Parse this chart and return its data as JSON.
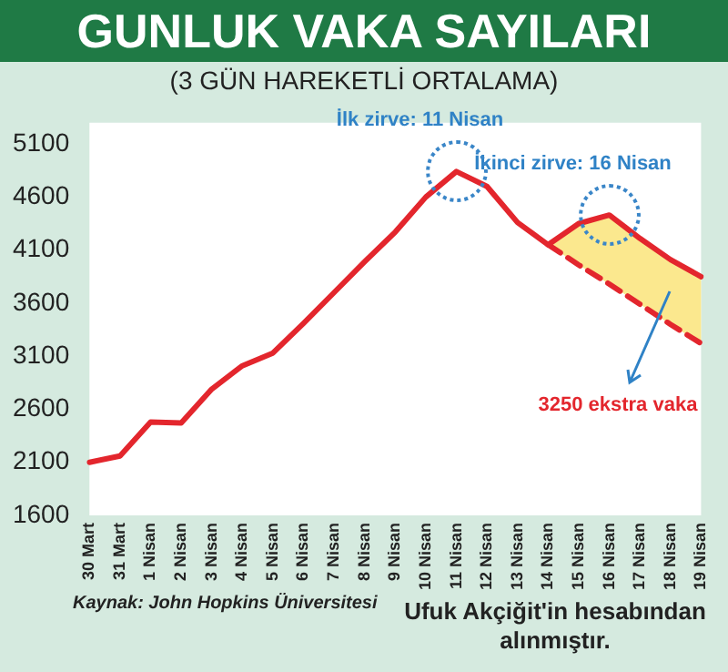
{
  "chart_data": {
    "type": "line",
    "title": "GUNLUK VAKA SAYILARI",
    "subtitle": "(3 GÜN HAREKETLİ ORTALAMA)",
    "categories": [
      "30 Mart",
      "31 Mart",
      "1 Nisan",
      "2 Nisan",
      "3 Nisan",
      "4 Nisan",
      "5 Nisan",
      "6 Nisan",
      "7 Nisan",
      "8 Nisan",
      "9 Nisan",
      "10 Nisan",
      "11 Nisan",
      "12 Nisan",
      "13 Nisan",
      "14 Nisan",
      "15 Nisan",
      "16 Nisan",
      "17 Nisan",
      "18 Nisan",
      "19 Nisan"
    ],
    "series": [
      {
        "color": "#e3262d",
        "line_style": "solid",
        "values": [
          2100,
          2160,
          2480,
          2470,
          2790,
          3010,
          3130,
          3410,
          3700,
          3990,
          4270,
          4600,
          4840,
          4700,
          4360,
          4150,
          4350,
          4430,
          4210,
          4010,
          3850
        ],
        "lower": [
          null,
          null,
          null,
          null,
          null,
          null,
          null,
          null,
          null,
          null,
          null,
          null,
          null,
          null,
          null,
          4150,
          3960,
          3780,
          3590,
          3400,
          3220
        ],
        "upper": [
          null,
          null,
          null,
          null,
          null,
          null,
          null,
          null,
          null,
          null,
          null,
          null,
          null,
          null,
          null,
          4150,
          4350,
          4430,
          4210,
          4010,
          3850
        ]
      },
      {
        "color": "#e3262d",
        "line_style": "dashed",
        "values": [
          null,
          null,
          null,
          null,
          null,
          null,
          null,
          null,
          null,
          null,
          null,
          null,
          null,
          null,
          null,
          4150,
          3960,
          3780,
          3590,
          3400,
          3220
        ]
      }
    ],
    "ylim": [
      1600,
      5300
    ],
    "yticks": [
      1600,
      2100,
      2600,
      3100,
      3600,
      4100,
      4600,
      5100
    ],
    "grid": false,
    "legend": false,
    "marker": "none",
    "annotations": [
      {
        "text": "İlk zirve: 11 Nisan",
        "x": "11 Nisan",
        "y": 4840
      },
      {
        "text": "İkinci zirve: 16 Nisan",
        "x": "16 Nisan",
        "y": 4430
      },
      "3250 ekstra vaka",
      "Kaynak: John Hopkins Üniversitesi",
      "Ufuk Akçiğit'in hesabından alınmıştır."
    ]
  }
}
